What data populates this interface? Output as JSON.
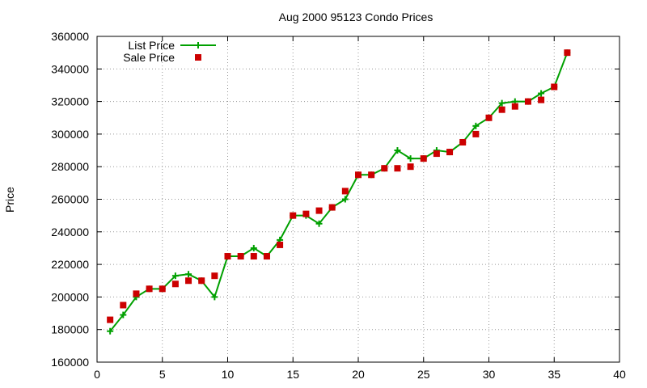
{
  "chart_data": {
    "type": "line",
    "title": "Aug 2000 95123 Condo Prices",
    "xlabel": "",
    "ylabel": "Price",
    "xlim": [
      0,
      40
    ],
    "ylim": [
      160000,
      360000
    ],
    "xticks": [
      0,
      5,
      10,
      15,
      20,
      25,
      30,
      35,
      40
    ],
    "yticks": [
      160000,
      180000,
      200000,
      220000,
      240000,
      260000,
      280000,
      300000,
      320000,
      340000,
      360000
    ],
    "grid": true,
    "legend_position": "top-left",
    "series": [
      {
        "name": "List Price",
        "style": "line-with-plus-markers",
        "color": "#00a000",
        "x": [
          1,
          2,
          3,
          4,
          5,
          6,
          7,
          8,
          9,
          10,
          11,
          12,
          13,
          14,
          15,
          16,
          17,
          18,
          19,
          20,
          21,
          22,
          23,
          24,
          25,
          26,
          27,
          28,
          29,
          30,
          31,
          32,
          33,
          34,
          35,
          36
        ],
        "y": [
          179000,
          189000,
          200000,
          205000,
          205000,
          213000,
          214000,
          210000,
          200000,
          225000,
          225000,
          230000,
          225000,
          235000,
          250000,
          250000,
          245000,
          255000,
          260000,
          275000,
          275000,
          279000,
          290000,
          285000,
          285000,
          290000,
          289000,
          295000,
          305000,
          310000,
          319000,
          320000,
          320000,
          325000,
          329000,
          350000
        ]
      },
      {
        "name": "Sale Price",
        "style": "square-markers",
        "color": "#cc0000",
        "x": [
          1,
          2,
          3,
          4,
          5,
          6,
          7,
          8,
          9,
          10,
          11,
          12,
          13,
          14,
          15,
          16,
          17,
          18,
          19,
          20,
          21,
          22,
          23,
          24,
          25,
          26,
          27,
          28,
          29,
          30,
          31,
          32,
          33,
          34,
          35,
          36
        ],
        "y": [
          186000,
          195000,
          202000,
          205000,
          205000,
          208000,
          210000,
          210000,
          213000,
          225000,
          225000,
          225000,
          225000,
          232000,
          250000,
          251000,
          253000,
          255000,
          265000,
          275000,
          275000,
          279000,
          279000,
          280000,
          285000,
          288000,
          289000,
          295000,
          300000,
          310000,
          315000,
          317000,
          320000,
          321000,
          329000,
          350000
        ]
      }
    ]
  }
}
